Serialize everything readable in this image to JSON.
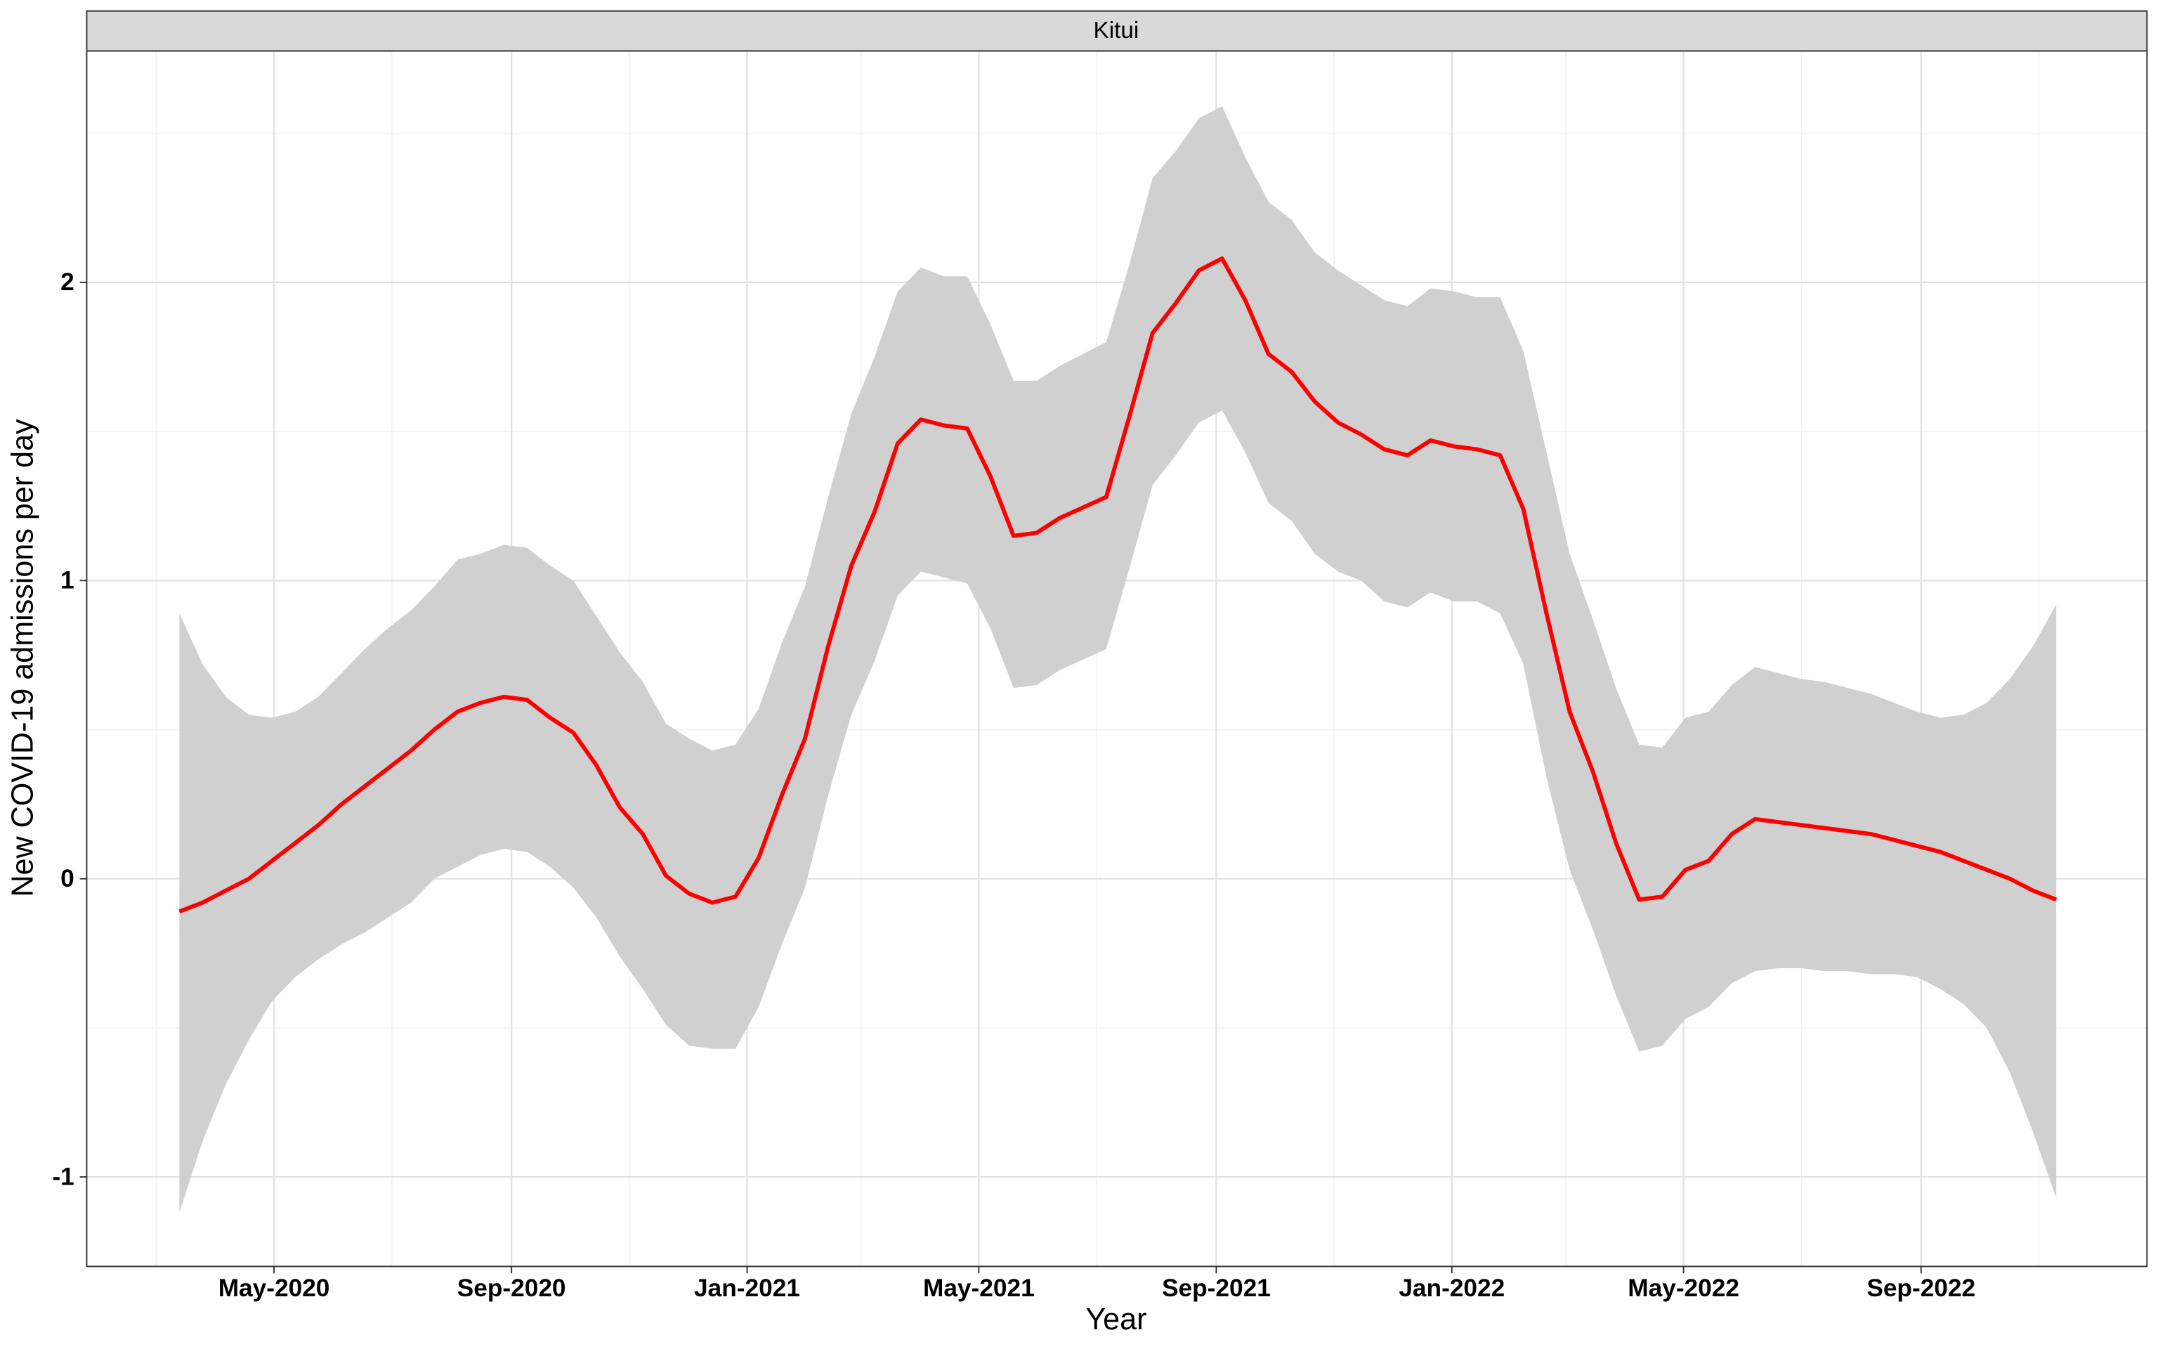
{
  "chart_data": {
    "type": "line",
    "strip_label": "Kitui",
    "xlabel": "Year",
    "ylabel": "New COVID-19 admissions per day",
    "x": [
      "2020-03-13",
      "2020-03-25",
      "2020-04-06",
      "2020-04-18",
      "2020-04-30",
      "2020-05-12",
      "2020-05-24",
      "2020-06-05",
      "2020-06-17",
      "2020-06-29",
      "2020-07-11",
      "2020-07-23",
      "2020-08-04",
      "2020-08-16",
      "2020-08-28",
      "2020-09-09",
      "2020-09-21",
      "2020-10-03",
      "2020-10-15",
      "2020-10-27",
      "2020-11-08",
      "2020-11-20",
      "2020-12-02",
      "2020-12-14",
      "2020-12-26",
      "2021-01-07",
      "2021-01-19",
      "2021-01-31",
      "2021-02-12",
      "2021-02-24",
      "2021-03-08",
      "2021-03-20",
      "2021-04-01",
      "2021-04-13",
      "2021-04-25",
      "2021-05-07",
      "2021-05-19",
      "2021-05-31",
      "2021-06-12",
      "2021-06-24",
      "2021-07-06",
      "2021-07-18",
      "2021-07-30",
      "2021-08-11",
      "2021-08-23",
      "2021-09-04",
      "2021-09-16",
      "2021-09-28",
      "2021-10-10",
      "2021-10-22",
      "2021-11-03",
      "2021-11-15",
      "2021-11-27",
      "2021-12-09",
      "2021-12-21",
      "2022-01-02",
      "2022-01-14",
      "2022-01-26",
      "2022-02-07",
      "2022-02-19",
      "2022-03-03",
      "2022-03-15",
      "2022-03-27",
      "2022-04-08",
      "2022-04-20",
      "2022-05-02",
      "2022-05-14",
      "2022-05-26",
      "2022-06-07",
      "2022-06-19",
      "2022-07-01",
      "2022-07-13",
      "2022-07-25",
      "2022-08-06",
      "2022-08-18",
      "2022-08-30",
      "2022-09-11",
      "2022-09-23",
      "2022-10-05",
      "2022-10-17",
      "2022-10-29",
      "2022-11-10"
    ],
    "values": [
      -0.11,
      -0.08,
      -0.04,
      0.0,
      0.06,
      0.12,
      0.18,
      0.25,
      0.31,
      0.37,
      0.43,
      0.5,
      0.56,
      0.59,
      0.61,
      0.6,
      0.54,
      0.49,
      0.38,
      0.24,
      0.15,
      0.01,
      -0.05,
      -0.08,
      -0.06,
      0.07,
      0.28,
      0.47,
      0.78,
      1.05,
      1.23,
      1.46,
      1.54,
      1.52,
      1.51,
      1.35,
      1.15,
      1.16,
      1.21,
      1.245,
      1.28,
      1.55,
      1.83,
      1.93,
      2.04,
      2.08,
      1.94,
      1.76,
      1.7,
      1.6,
      1.53,
      1.49,
      1.44,
      1.42,
      1.47,
      1.45,
      1.44,
      1.42,
      1.24,
      0.89,
      0.56,
      0.36,
      0.12,
      -0.07,
      -0.06,
      0.03,
      0.06,
      0.15,
      0.2,
      0.19,
      0.18,
      0.17,
      0.16,
      0.15,
      0.13,
      0.11,
      0.09,
      0.06,
      0.03,
      0.0,
      -0.04,
      -0.07
    ],
    "upper": [
      0.89,
      0.72,
      0.61,
      0.55,
      0.54,
      0.56,
      0.61,
      0.69,
      0.77,
      0.84,
      0.9,
      0.98,
      1.07,
      1.09,
      1.12,
      1.11,
      1.05,
      1.0,
      0.88,
      0.76,
      0.66,
      0.52,
      0.47,
      0.43,
      0.45,
      0.57,
      0.79,
      0.98,
      1.28,
      1.56,
      1.75,
      1.97,
      2.05,
      2.02,
      2.02,
      1.86,
      1.67,
      1.67,
      1.72,
      1.76,
      1.8,
      2.06,
      2.35,
      2.44,
      2.55,
      2.59,
      2.42,
      2.27,
      2.21,
      2.1,
      2.04,
      1.99,
      1.94,
      1.92,
      1.98,
      1.97,
      1.95,
      1.95,
      1.77,
      1.43,
      1.09,
      0.87,
      0.64,
      0.45,
      0.44,
      0.54,
      0.56,
      0.65,
      0.71,
      0.69,
      0.67,
      0.66,
      0.64,
      0.62,
      0.59,
      0.56,
      0.54,
      0.55,
      0.59,
      0.67,
      0.78,
      0.92
    ],
    "lower": [
      -1.12,
      -0.88,
      -0.69,
      -0.54,
      -0.41,
      -0.33,
      -0.27,
      -0.22,
      -0.18,
      -0.13,
      -0.08,
      0.0,
      0.04,
      0.08,
      0.1,
      0.09,
      0.04,
      -0.03,
      -0.13,
      -0.26,
      -0.37,
      -0.49,
      -0.56,
      -0.57,
      -0.57,
      -0.43,
      -0.22,
      -0.03,
      0.28,
      0.55,
      0.73,
      0.95,
      1.03,
      1.01,
      0.99,
      0.84,
      0.64,
      0.65,
      0.7,
      0.735,
      0.77,
      1.04,
      1.32,
      1.42,
      1.53,
      1.57,
      1.43,
      1.26,
      1.2,
      1.09,
      1.03,
      1.0,
      0.93,
      0.91,
      0.96,
      0.93,
      0.93,
      0.89,
      0.72,
      0.34,
      0.03,
      -0.17,
      -0.39,
      -0.58,
      -0.56,
      -0.47,
      -0.43,
      -0.35,
      -0.31,
      -0.3,
      -0.3,
      -0.31,
      -0.31,
      -0.32,
      -0.32,
      -0.33,
      -0.37,
      -0.42,
      -0.5,
      -0.65,
      -0.85,
      -1.07
    ],
    "color": "#ff0000",
    "band_color": "#d0d0d0",
    "xlim": [
      "2020-01-25",
      "2022-12-27"
    ],
    "xticks": [
      {
        "value": "2020-05-01",
        "label": "May-2020"
      },
      {
        "value": "2020-09-01",
        "label": "Sep-2020"
      },
      {
        "value": "2021-01-01",
        "label": "Jan-2021"
      },
      {
        "value": "2021-05-01",
        "label": "May-2021"
      },
      {
        "value": "2021-09-01",
        "label": "Sep-2021"
      },
      {
        "value": "2022-01-01",
        "label": "Jan-2022"
      },
      {
        "value": "2022-05-01",
        "label": "May-2022"
      },
      {
        "value": "2022-09-01",
        "label": "Sep-2022"
      }
    ],
    "xminorticks": [
      "2020-03-01",
      "2020-07-01",
      "2020-11-01",
      "2021-03-01",
      "2021-07-01",
      "2021-11-01",
      "2022-03-01",
      "2022-07-01",
      "2022-11-01"
    ],
    "ylim": [
      -1.3,
      2.776
    ],
    "yticks": [
      -1,
      0,
      1,
      2
    ],
    "yminorticks": [
      -0.5,
      0.5,
      1.5,
      2.5
    ],
    "grid": true
  }
}
